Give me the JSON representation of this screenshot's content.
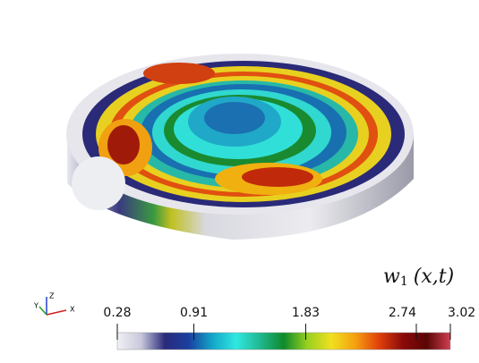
{
  "colorbar": {
    "title": {
      "base": "w",
      "subscript": "1",
      "args": "(x,t)"
    },
    "range": [
      0.28,
      3.02
    ],
    "ticks": [
      0.28,
      0.91,
      1.83,
      2.74,
      3.02
    ],
    "colormap": [
      "#f0f0f5",
      "#c8c8dc",
      "#2a2a7a",
      "#1a3fa0",
      "#13a6c8",
      "#30e8e0",
      "#20b890",
      "#0f8a2a",
      "#9ad020",
      "#f0e020",
      "#f5a010",
      "#e0400a",
      "#8a0a0a",
      "#5a0505",
      "#d04050"
    ]
  },
  "axes_triad": {
    "x": "X",
    "y": "Y",
    "z": "Z"
  }
}
